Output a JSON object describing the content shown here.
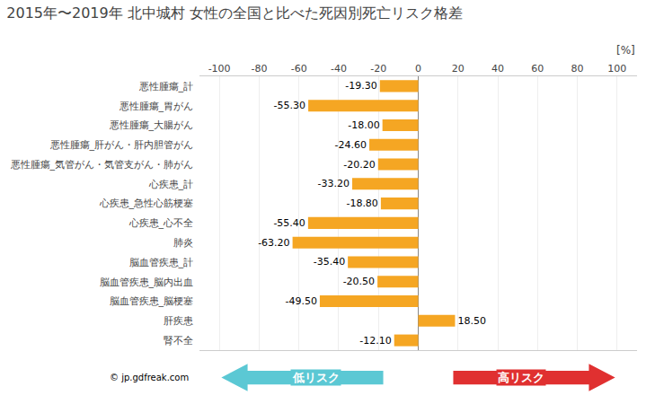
{
  "chart_data": {
    "type": "bar",
    "orientation": "horizontal",
    "title": "2015年〜2019年 北中城村 女性の全国と比べた死因別死亡リスク格差",
    "xlabel": "[%]",
    "categories": [
      "悪性腫瘍_計",
      "悪性腫瘍_胃がん",
      "悪性腫瘍_大腸がん",
      "悪性腫瘍_肝がん・肝内胆管がん",
      "悪性腫瘍_気管がん・気管支がん・肺がん",
      "心疾患_計",
      "心疾患_急性心筋梗塞",
      "心疾患_心不全",
      "肺炎",
      "脳血管疾患_計",
      "脳血管疾患_脳内出血",
      "脳血管疾患_脳梗塞",
      "肝疾患",
      "腎不全"
    ],
    "values": [
      -19.3,
      -55.3,
      -18.0,
      -24.6,
      -20.2,
      -33.2,
      -18.8,
      -55.4,
      -63.2,
      -35.4,
      -20.5,
      -49.5,
      18.5,
      -12.1
    ],
    "value_labels": [
      "-19.30",
      "-55.30",
      "-18.00",
      "-24.60",
      "-20.20",
      "-33.20",
      "-18.80",
      "-55.40",
      "-63.20",
      "-35.40",
      "-20.50",
      "-49.50",
      "18.50",
      "-12.10"
    ],
    "data_labels": true,
    "color": "#F5A623",
    "xlim": [
      -110,
      110
    ],
    "xticks": [
      -100,
      -80,
      -60,
      -40,
      -20,
      0,
      20,
      40,
      60,
      80,
      100
    ],
    "grid": true,
    "annotations": [
      {
        "text": "低リスク",
        "color": "#5bc8d4"
      },
      {
        "text": "高リスク",
        "color": "#e03030"
      },
      {
        "text": "© jp.gdfreak.com"
      }
    ]
  }
}
